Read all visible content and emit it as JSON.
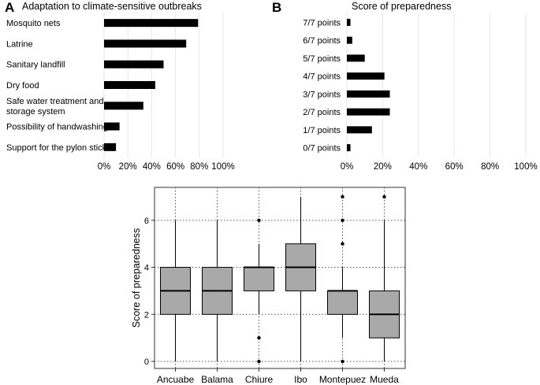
{
  "chart_data": [
    {
      "panel_letter": "A",
      "type": "bar",
      "orientation": "horizontal",
      "title": "Adaptation to climate-sensitive outbreaks",
      "categories": [
        [
          "Mosquito nets"
        ],
        [
          "Latrine"
        ],
        [
          "Sanitary landfill"
        ],
        [
          "Dry food"
        ],
        [
          "Safe water treatment and",
          "storage system"
        ],
        [
          "Possibility of handwashing"
        ],
        [
          "Support for the pylon stick"
        ]
      ],
      "values": [
        79,
        69,
        50,
        43,
        33,
        13,
        10
      ],
      "xlim": [
        0,
        100
      ],
      "ticks": [
        0,
        20,
        40,
        60,
        80,
        100
      ],
      "tick_labels": [
        "0%",
        "20%",
        "40%",
        "60%",
        "80%",
        "100%"
      ],
      "grid": true,
      "bar_color": "#000000",
      "grid_color": "#e6e6e6"
    },
    {
      "panel_letter": "B",
      "type": "bar",
      "orientation": "horizontal",
      "title": "Score of preparedness",
      "categories": [
        "7/7 points",
        "6/7 points",
        "5/7 points",
        "4/7 points",
        "3/7 points",
        "2/7 points",
        "1/7 points",
        "0/7 points"
      ],
      "values": [
        2,
        3,
        10,
        21,
        24,
        24,
        14,
        2
      ],
      "xlim": [
        0,
        100
      ],
      "ticks": [
        0,
        20,
        40,
        60,
        80,
        100
      ],
      "tick_labels": [
        "0%",
        "20%",
        "40%",
        "60%",
        "80%",
        "100%"
      ],
      "grid": true,
      "bar_color": "#000000",
      "grid_color": "#e6e6e6"
    },
    {
      "type": "boxplot",
      "ylabel": "Score of preparedness",
      "ylim": [
        -0.3,
        7.4
      ],
      "yticks": [
        0,
        2,
        4,
        6
      ],
      "grid": "dotted",
      "box_color": "#a9a9a9",
      "groups": [
        {
          "name": "Ancuabe",
          "min": 0,
          "q1": 2,
          "median": 3,
          "q3": 4,
          "max": 6,
          "outliers": []
        },
        {
          "name": "Balama",
          "min": 0,
          "q1": 2,
          "median": 3,
          "q3": 4,
          "max": 6,
          "outliers": []
        },
        {
          "name": "Chiure",
          "min": 2,
          "q1": 3,
          "median": 4,
          "q3": 4,
          "max": 5,
          "outliers": [
            0,
            1,
            6
          ]
        },
        {
          "name": "Ibo",
          "min": 0,
          "q1": 3,
          "median": 4,
          "q3": 5,
          "max": 7,
          "outliers": []
        },
        {
          "name": "Montepuez",
          "min": 1,
          "q1": 2,
          "median": 3,
          "q3": 3,
          "max": 4,
          "outliers": [
            0,
            5,
            6,
            7
          ]
        },
        {
          "name": "Mueda",
          "min": 0,
          "q1": 1,
          "median": 2,
          "q3": 3,
          "max": 6,
          "outliers": [
            7
          ]
        }
      ]
    }
  ]
}
